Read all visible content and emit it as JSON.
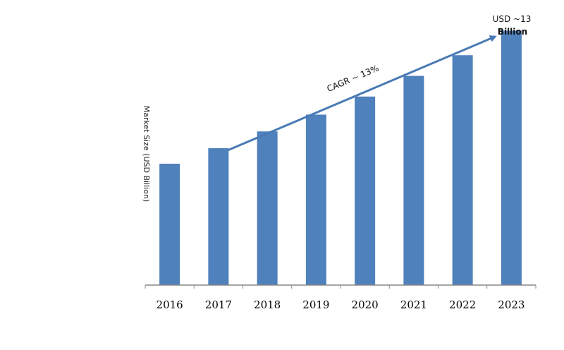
{
  "chart_data": {
    "type": "bar",
    "categories": [
      "2016",
      "2017",
      "2018",
      "2019",
      "2020",
      "2021",
      "2022",
      "2023"
    ],
    "values": [
      4.7,
      5.3,
      5.95,
      6.6,
      7.3,
      8.1,
      8.9,
      9.85
    ],
    "ylim": [
      0,
      10
    ],
    "ylabel": "Market Size (USD Billion)",
    "xlabel": "",
    "title": "",
    "grid": false,
    "legend": "none",
    "annotations": {
      "cagr": "CAGR ~ 13%",
      "end_value_line1": "USD ~13",
      "end_value_line2": "Billion"
    },
    "colors": {
      "bar": "#4f81bd",
      "arrow": "#4a7ab5",
      "axis": "#888888"
    }
  }
}
